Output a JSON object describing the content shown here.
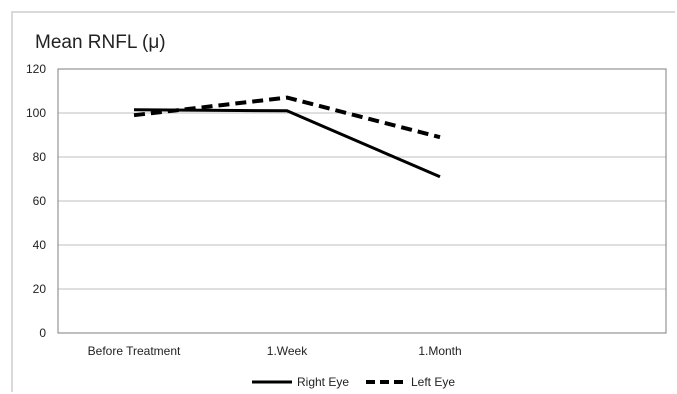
{
  "chart_data": {
    "type": "line",
    "title": "Mean RNFL (μ)",
    "xlabel": "",
    "ylabel": "",
    "categories": [
      "Before Treatment",
      "1.Week",
      "1.Month"
    ],
    "ylim": [
      0,
      120
    ],
    "yticks": [
      0,
      20,
      40,
      60,
      80,
      100,
      120
    ],
    "grid": true,
    "legend_position": "bottom",
    "series": [
      {
        "name": "Right Eye",
        "values": [
          101.5,
          101,
          71
        ],
        "color": "#000000",
        "style": "solid"
      },
      {
        "name": "Left Eye",
        "values": [
          99,
          107,
          89
        ],
        "color": "#000000",
        "style": "dashed"
      }
    ]
  }
}
